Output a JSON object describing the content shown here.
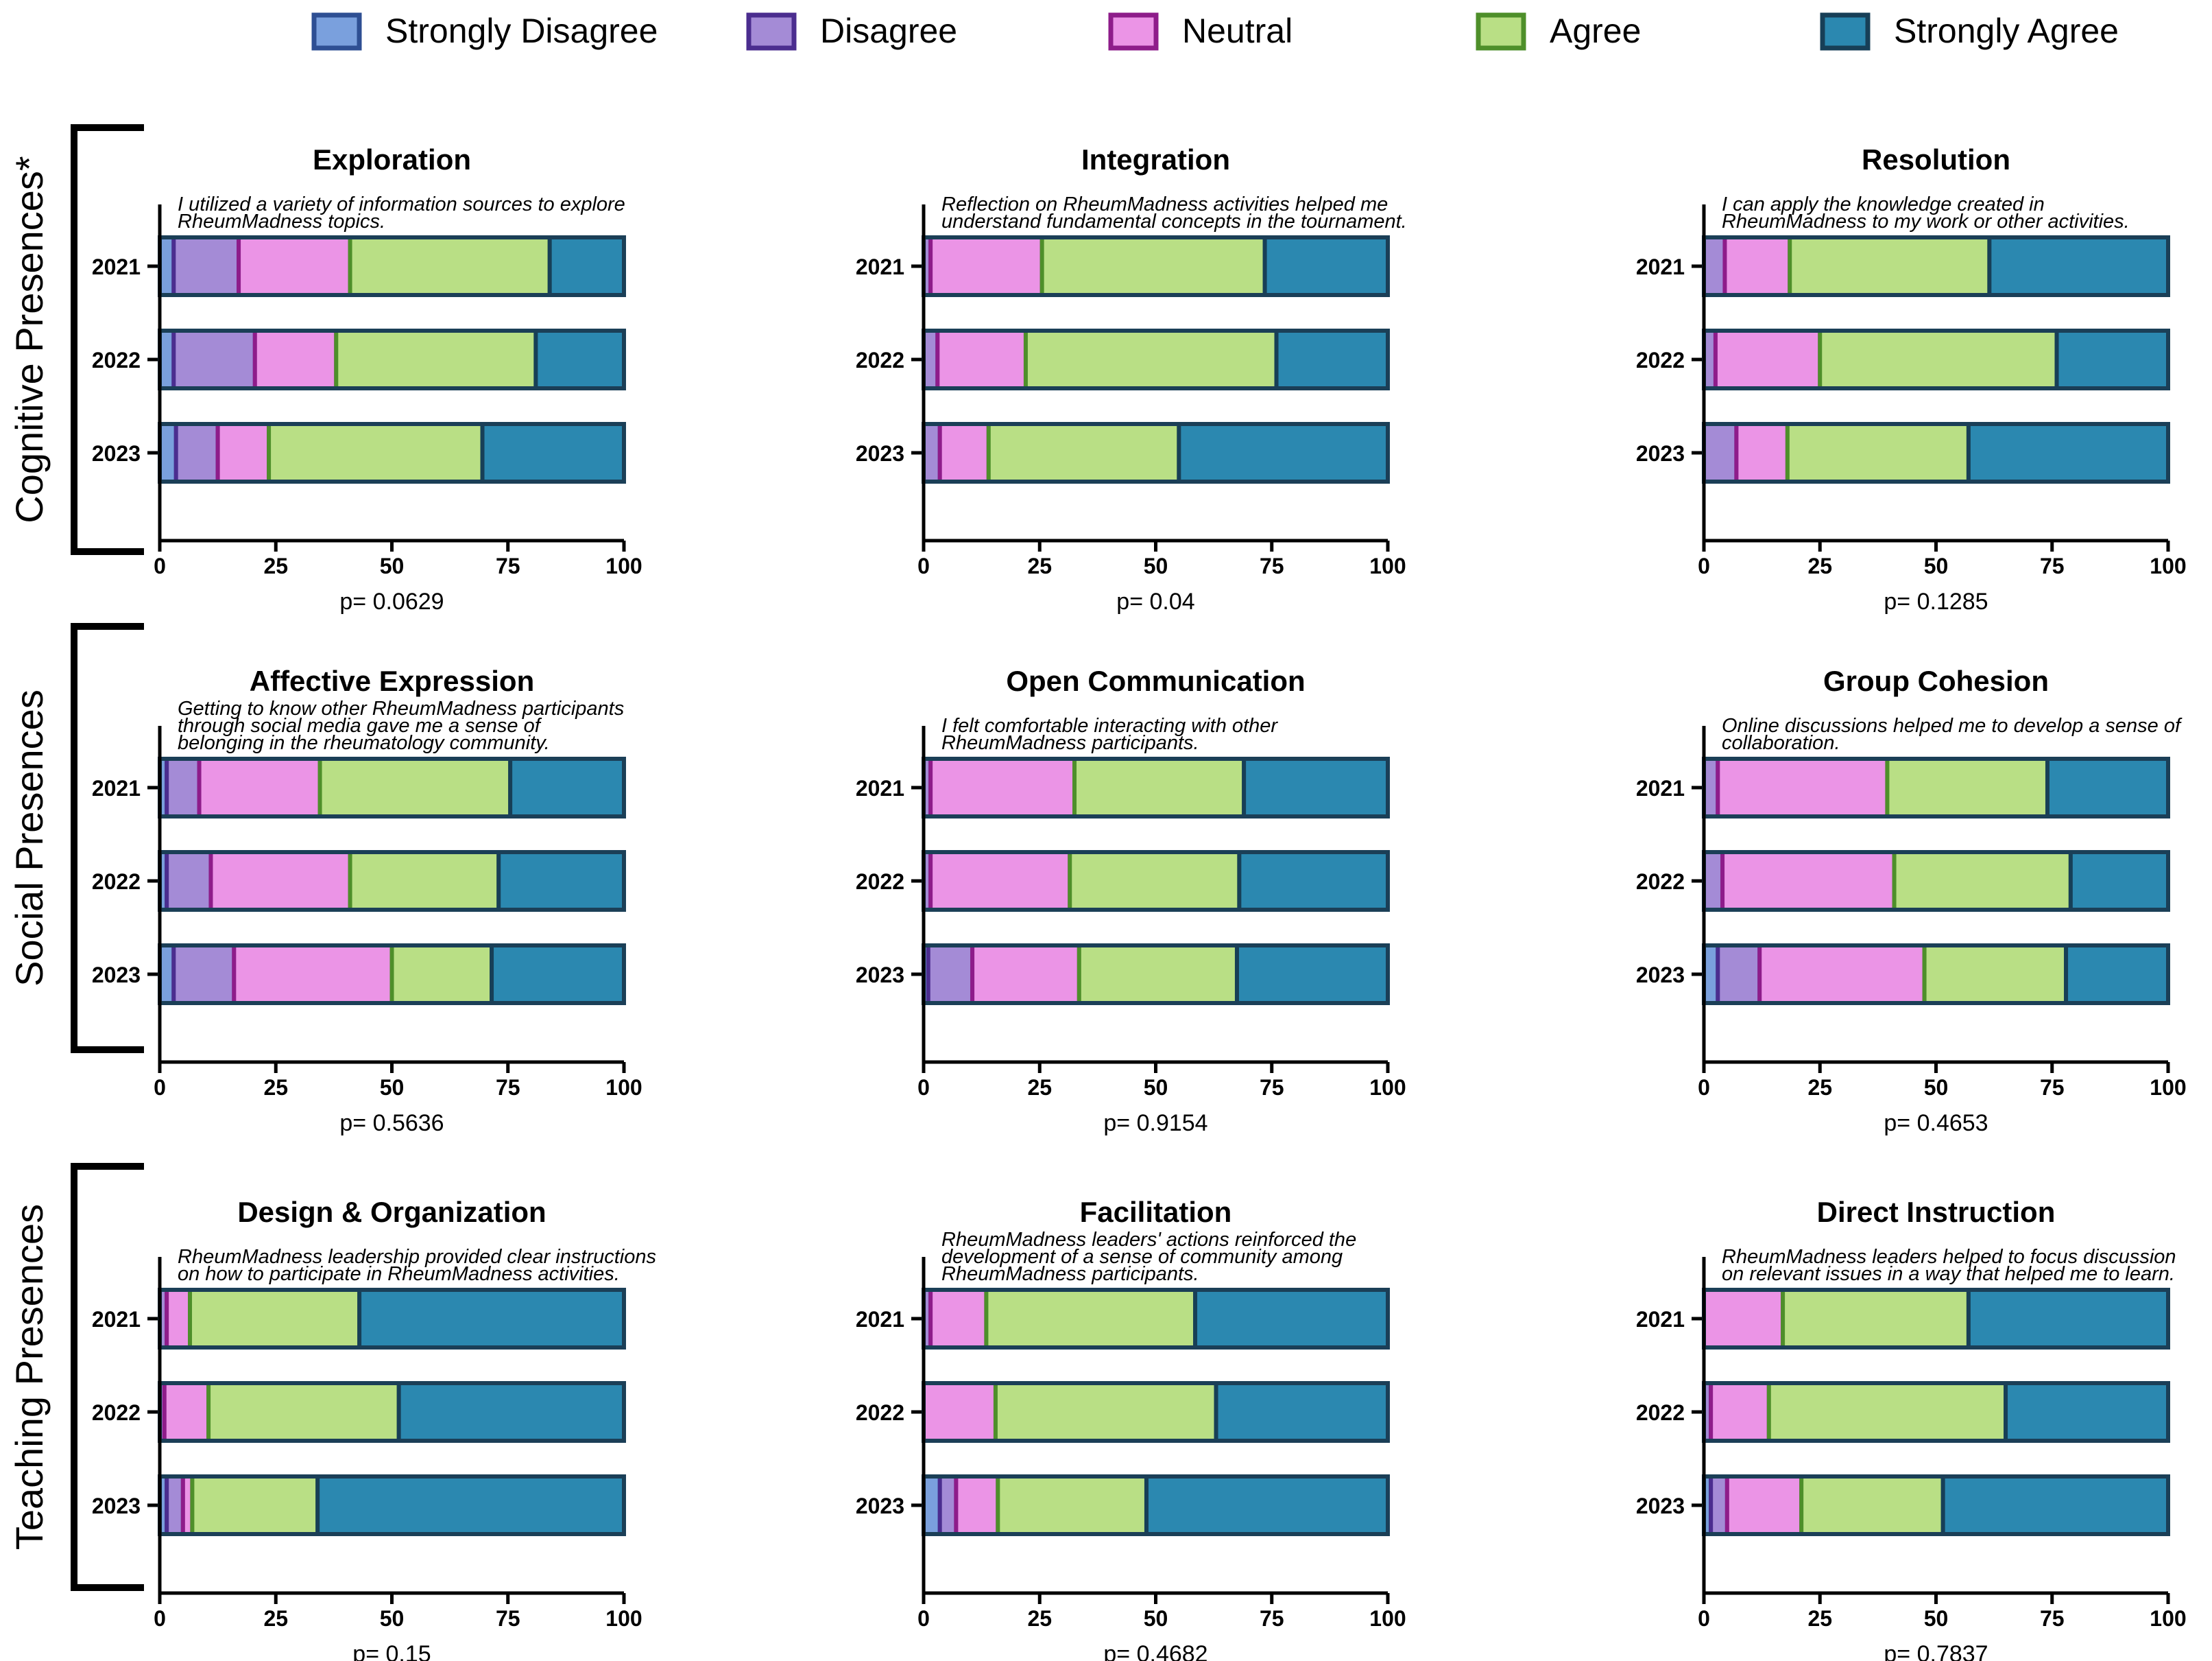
{
  "legend": {
    "items": [
      {
        "label": "Strongly Disagree",
        "fill": "#7aa0dd",
        "stroke": "#2e4f93"
      },
      {
        "label": "Disagree",
        "fill": "#a48bd6",
        "stroke": "#4b2d8f"
      },
      {
        "label": "Neutral",
        "fill": "#eb94e6",
        "stroke": "#8e1c8a"
      },
      {
        "label": "Agree",
        "fill": "#b9df85",
        "stroke": "#4e8f2a"
      },
      {
        "label": "Strongly Agree",
        "fill": "#2b88b0",
        "stroke": "#173f57"
      }
    ]
  },
  "groups": [
    {
      "label": "Cognitive Presences*"
    },
    {
      "label": "Social Presences"
    },
    {
      "label": "Teaching Presences"
    }
  ],
  "chart_data": [
    {
      "type": "bar",
      "orientation": "horizontal",
      "stacked": true,
      "title": "Exploration",
      "question_lines": [
        "I utilized a variety of information sources to explore",
        "RheumMadness topics."
      ],
      "categories": [
        "2021",
        "2022",
        "2023"
      ],
      "xlim": [
        0,
        100
      ],
      "xticks": [
        "0",
        "25",
        "50",
        "75",
        "100"
      ],
      "pvalue": "p= 0.0629",
      "series": [
        {
          "name": "Strongly Disagree",
          "values": [
            3,
            3,
            3.5
          ]
        },
        {
          "name": "Disagree",
          "values": [
            14,
            17.5,
            9
          ]
        },
        {
          "name": "Neutral",
          "values": [
            24,
            17.5,
            11
          ]
        },
        {
          "name": "Agree",
          "values": [
            43,
            43,
            46
          ]
        },
        {
          "name": "Strongly Agree",
          "values": [
            16,
            19,
            30.5
          ]
        }
      ]
    },
    {
      "type": "bar",
      "orientation": "horizontal",
      "stacked": true,
      "title": "Integration",
      "question_lines": [
        "Reflection on RheumMadness activities helped me",
        "understand fundamental concepts in the tournament."
      ],
      "categories": [
        "2021",
        "2022",
        "2023"
      ],
      "xlim": [
        0,
        100
      ],
      "xticks": [
        "0",
        "25",
        "50",
        "75",
        "100"
      ],
      "pvalue": "p= 0.04",
      "series": [
        {
          "name": "Strongly Disagree",
          "values": [
            0,
            0,
            0
          ]
        },
        {
          "name": "Disagree",
          "values": [
            1.5,
            3,
            3.5
          ]
        },
        {
          "name": "Neutral",
          "values": [
            24,
            19,
            10.5
          ]
        },
        {
          "name": "Agree",
          "values": [
            48,
            54,
            41
          ]
        },
        {
          "name": "Strongly Agree",
          "values": [
            26.5,
            24,
            45
          ]
        }
      ]
    },
    {
      "type": "bar",
      "orientation": "horizontal",
      "stacked": true,
      "title": "Resolution",
      "question_lines": [
        "I can apply the knowledge created in",
        "RheumMadness to my work or other activities."
      ],
      "categories": [
        "2021",
        "2022",
        "2023"
      ],
      "xlim": [
        0,
        100
      ],
      "xticks": [
        "0",
        "25",
        "50",
        "75",
        "100"
      ],
      "pvalue": "p= 0.1285",
      "series": [
        {
          "name": "Strongly Disagree",
          "values": [
            0,
            0,
            0
          ]
        },
        {
          "name": "Disagree",
          "values": [
            4.5,
            2.5,
            7
          ]
        },
        {
          "name": "Neutral",
          "values": [
            14,
            22.5,
            11
          ]
        },
        {
          "name": "Agree",
          "values": [
            43,
            51,
            39
          ]
        },
        {
          "name": "Strongly Agree",
          "values": [
            38.5,
            24,
            43
          ]
        }
      ]
    },
    {
      "type": "bar",
      "orientation": "horizontal",
      "stacked": true,
      "title": "Affective Expression",
      "question_lines": [
        "Getting to know other RheumMadness participants",
        "through social media gave me a sense of",
        "belonging in the rheumatology community."
      ],
      "categories": [
        "2021",
        "2022",
        "2023"
      ],
      "xlim": [
        0,
        100
      ],
      "xticks": [
        "0",
        "25",
        "50",
        "75",
        "100"
      ],
      "pvalue": "p= 0.5636",
      "series": [
        {
          "name": "Strongly Disagree",
          "values": [
            1.5,
            1.5,
            3
          ]
        },
        {
          "name": "Disagree",
          "values": [
            7,
            9.5,
            13
          ]
        },
        {
          "name": "Neutral",
          "values": [
            26,
            30,
            34
          ]
        },
        {
          "name": "Agree",
          "values": [
            41,
            32,
            21.5
          ]
        },
        {
          "name": "Strongly Agree",
          "values": [
            24.5,
            27,
            28.5
          ]
        }
      ]
    },
    {
      "type": "bar",
      "orientation": "horizontal",
      "stacked": true,
      "title": "Open Communication",
      "question_lines": [
        "I felt comfortable interacting with other",
        "RheumMadness participants."
      ],
      "categories": [
        "2021",
        "2022",
        "2023"
      ],
      "xlim": [
        0,
        100
      ],
      "xticks": [
        "0",
        "25",
        "50",
        "75",
        "100"
      ],
      "pvalue": "p= 0.9154",
      "series": [
        {
          "name": "Strongly Disagree",
          "values": [
            0,
            0,
            1
          ]
        },
        {
          "name": "Disagree",
          "values": [
            1.5,
            1.5,
            9.5
          ]
        },
        {
          "name": "Neutral",
          "values": [
            31,
            30,
            23
          ]
        },
        {
          "name": "Agree",
          "values": [
            36.5,
            36.5,
            34
          ]
        },
        {
          "name": "Strongly Agree",
          "values": [
            31,
            32,
            32.5
          ]
        }
      ]
    },
    {
      "type": "bar",
      "orientation": "horizontal",
      "stacked": true,
      "title": "Group Cohesion",
      "question_lines": [
        "Online discussions helped me to develop a sense of",
        "collaboration."
      ],
      "categories": [
        "2021",
        "2022",
        "2023"
      ],
      "xlim": [
        0,
        100
      ],
      "xticks": [
        "0",
        "25",
        "50",
        "75",
        "100"
      ],
      "pvalue": "p= 0.4653",
      "series": [
        {
          "name": "Strongly Disagree",
          "values": [
            0,
            0,
            3
          ]
        },
        {
          "name": "Disagree",
          "values": [
            3,
            4,
            9
          ]
        },
        {
          "name": "Neutral",
          "values": [
            36.5,
            37,
            35.5
          ]
        },
        {
          "name": "Agree",
          "values": [
            34.5,
            38,
            30.5
          ]
        },
        {
          "name": "Strongly Agree",
          "values": [
            26,
            21,
            22
          ]
        }
      ]
    },
    {
      "type": "bar",
      "orientation": "horizontal",
      "stacked": true,
      "title": "Design & Organization",
      "question_lines": [
        "RheumMadness leadership provided clear instructions",
        "on how to participate in RheumMadness activities."
      ],
      "categories": [
        "2021",
        "2022",
        "2023"
      ],
      "xlim": [
        0,
        100
      ],
      "xticks": [
        "0",
        "25",
        "50",
        "75",
        "100"
      ],
      "pvalue": "p= 0.15",
      "series": [
        {
          "name": "Strongly Disagree",
          "values": [
            0,
            0,
            1.5
          ]
        },
        {
          "name": "Disagree",
          "values": [
            1.5,
            1,
            3.5
          ]
        },
        {
          "name": "Neutral",
          "values": [
            5,
            9.5,
            2
          ]
        },
        {
          "name": "Agree",
          "values": [
            36.5,
            41,
            27
          ]
        },
        {
          "name": "Strongly Agree",
          "values": [
            57,
            48.5,
            66
          ]
        }
      ]
    },
    {
      "type": "bar",
      "orientation": "horizontal",
      "stacked": true,
      "title": "Facilitation",
      "question_lines": [
        "RheumMadness leaders' actions reinforced the",
        "development of a sense of community among",
        "RheumMadness participants."
      ],
      "categories": [
        "2021",
        "2022",
        "2023"
      ],
      "xlim": [
        0,
        100
      ],
      "xticks": [
        "0",
        "25",
        "50",
        "75",
        "100"
      ],
      "pvalue": "p= 0.4682",
      "series": [
        {
          "name": "Strongly Disagree",
          "values": [
            0,
            0,
            3.5
          ]
        },
        {
          "name": "Disagree",
          "values": [
            1.5,
            0,
            3.5
          ]
        },
        {
          "name": "Neutral",
          "values": [
            12,
            15.5,
            9
          ]
        },
        {
          "name": "Agree",
          "values": [
            45,
            47.5,
            32
          ]
        },
        {
          "name": "Strongly Agree",
          "values": [
            41.5,
            37,
            52
          ]
        }
      ]
    },
    {
      "type": "bar",
      "orientation": "horizontal",
      "stacked": true,
      "title": "Direct Instruction",
      "question_lines": [
        "RheumMadness leaders helped to focus discussion",
        "on relevant issues in a way that helped me to learn."
      ],
      "categories": [
        "2021",
        "2022",
        "2023"
      ],
      "xlim": [
        0,
        100
      ],
      "xticks": [
        "0",
        "25",
        "50",
        "75",
        "100"
      ],
      "pvalue": "p= 0.7837",
      "series": [
        {
          "name": "Strongly Disagree",
          "values": [
            0,
            0,
            1.5
          ]
        },
        {
          "name": "Disagree",
          "values": [
            0,
            1.5,
            3.5
          ]
        },
        {
          "name": "Neutral",
          "values": [
            17,
            12.5,
            16
          ]
        },
        {
          "name": "Agree",
          "values": [
            40,
            51,
            30.5
          ]
        },
        {
          "name": "Strongly Agree",
          "values": [
            43,
            35,
            48.5
          ]
        }
      ]
    }
  ]
}
